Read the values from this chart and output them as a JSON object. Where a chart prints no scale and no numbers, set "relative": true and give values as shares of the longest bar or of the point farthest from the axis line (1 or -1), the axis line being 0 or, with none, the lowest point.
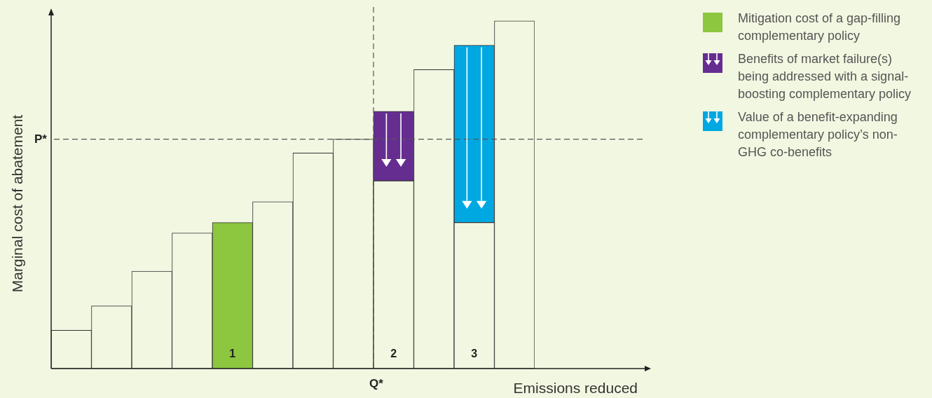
{
  "chart_data": {
    "type": "bar",
    "relative": true,
    "stacked": true,
    "ylabel": "Marginal cost of abatement",
    "xlabel": "Emissions reduced",
    "categories": [
      null,
      null,
      null,
      null,
      "1",
      null,
      null,
      null,
      "2",
      null,
      "3",
      null
    ],
    "annotations": [
      "Q*"
    ],
    "series": [
      {
        "color": "#f2f7e1",
        "values": [
          0.11,
          0.18,
          0.28,
          0.39,
          null,
          0.48,
          0.62,
          0.66,
          0.54,
          0.86,
          0.42,
          1
        ]
      },
      {
        "name": "Mitigation cost of a gap-filling complementary policy",
        "color": "#8dc63f",
        "values": [
          null,
          null,
          null,
          null,
          0.42,
          null,
          null,
          null,
          null,
          null,
          null,
          null
        ]
      },
      {
        "name": "Benefits of market failure(s) being addressed with a signal-boosting complementary policy",
        "color": "#662d91",
        "values": [
          null,
          null,
          null,
          null,
          null,
          null,
          null,
          null,
          0.2,
          null,
          null,
          null
        ]
      },
      {
        "name": "Value of a benefit-expanding complementary policy’s non-GHG co-benefits",
        "color": "#00a8e1",
        "values": [
          null,
          null,
          null,
          null,
          null,
          null,
          null,
          null,
          null,
          null,
          0.51,
          null
        ]
      }
    ],
    "ref_lines": [
      {
        "axis": "y",
        "value": 0.66,
        "label": "P*",
        "line_style": "dashed"
      }
    ],
    "legend": "right"
  }
}
